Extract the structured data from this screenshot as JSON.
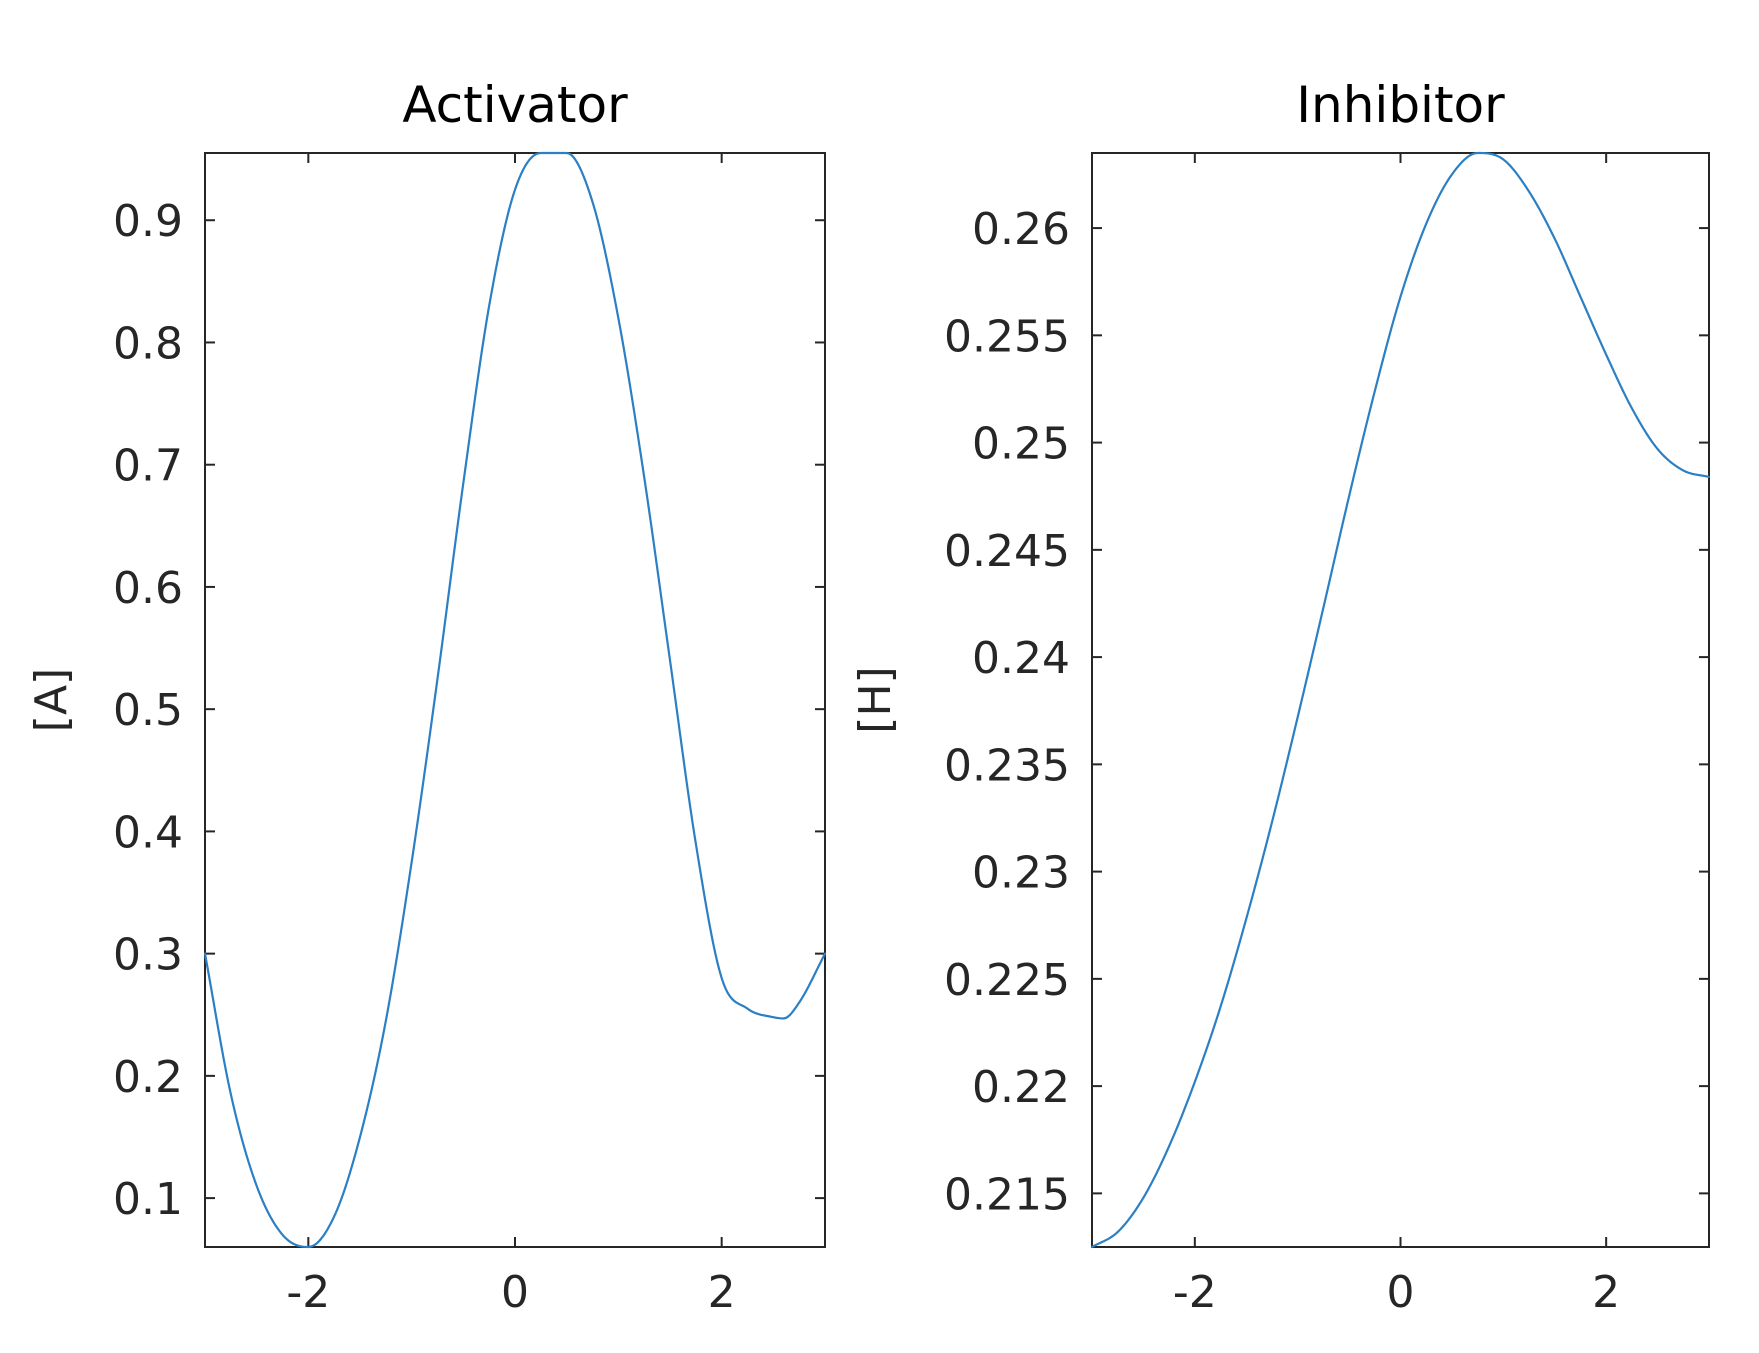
{
  "chart_data": [
    {
      "type": "line",
      "title": "Activator",
      "xlabel": "",
      "ylabel": "[A]",
      "xlim": [
        -3,
        3
      ],
      "ylim": [
        0.06,
        0.955
      ],
      "xticks": [
        -2,
        0,
        2
      ],
      "xtick_labels": [
        "-2",
        "0",
        "2"
      ],
      "yticks": [
        0.1,
        0.2,
        0.3,
        0.4,
        0.5,
        0.6,
        0.7,
        0.8,
        0.9
      ],
      "ytick_labels": [
        "0.1",
        "0.2",
        "0.3",
        "0.4",
        "0.5",
        "0.6",
        "0.7",
        "0.8",
        "0.9"
      ],
      "grid": false,
      "line_color": "#2b7fc4",
      "series": [
        {
          "x": [
            -3.0,
            -2.75,
            -2.5,
            -2.25,
            -2.0,
            -1.75,
            -1.5,
            -1.25,
            -1.0,
            -0.75,
            -0.5,
            -0.25,
            0.0,
            0.25,
            0.5,
            0.75,
            1.0,
            1.25,
            1.5,
            1.75,
            2.0,
            2.25,
            2.5,
            2.6,
            2.75,
            3.0
          ],
          "values": [
            0.3,
            0.185,
            0.11,
            0.07,
            0.06,
            0.085,
            0.15,
            0.245,
            0.375,
            0.525,
            0.685,
            0.83,
            0.925,
            0.955,
            0.955,
            0.915,
            0.82,
            0.69,
            0.54,
            0.39,
            0.28,
            0.255,
            0.248,
            0.247,
            0.26,
            0.3
          ]
        }
      ]
    },
    {
      "type": "line",
      "title": "Inhibitor",
      "xlabel": "",
      "ylabel": "[H]",
      "xlim": [
        -3,
        3
      ],
      "ylim": [
        0.2125,
        0.2635
      ],
      "xticks": [
        -2,
        0,
        2
      ],
      "xtick_labels": [
        "-2",
        "0",
        "2"
      ],
      "yticks": [
        0.215,
        0.22,
        0.225,
        0.23,
        0.235,
        0.24,
        0.245,
        0.25,
        0.255,
        0.26
      ],
      "ytick_labels": [
        "0.215",
        "0.22",
        "0.225",
        "0.23",
        "0.235",
        "0.24",
        "0.245",
        "0.25",
        "0.255",
        "0.26"
      ],
      "grid": false,
      "line_color": "#2b7fc4",
      "series": [
        {
          "x": [
            -3.0,
            -2.75,
            -2.5,
            -2.25,
            -2.0,
            -1.75,
            -1.5,
            -1.25,
            -1.0,
            -0.75,
            -0.5,
            -0.25,
            0.0,
            0.25,
            0.5,
            0.75,
            1.0,
            1.25,
            1.5,
            1.75,
            2.0,
            2.25,
            2.5,
            2.75,
            3.0
          ],
          "values": [
            0.2125,
            0.2132,
            0.2148,
            0.2172,
            0.2202,
            0.2237,
            0.2278,
            0.2323,
            0.2372,
            0.2423,
            0.2475,
            0.2524,
            0.2568,
            0.2602,
            0.2625,
            0.2635,
            0.2632,
            0.2617,
            0.2595,
            0.2568,
            0.2541,
            0.2516,
            0.2497,
            0.2487,
            0.2484
          ]
        }
      ]
    }
  ]
}
